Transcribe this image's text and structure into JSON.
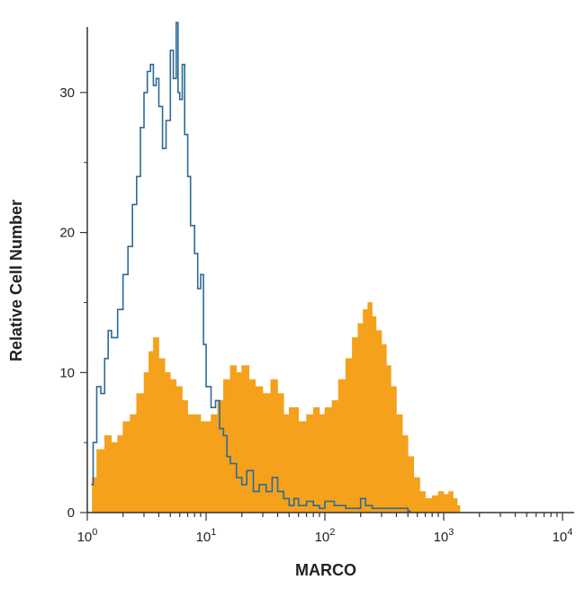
{
  "colors": {
    "positive_fill": "#F5A11C",
    "control_line": "#2C6A96",
    "axis": "#333333"
  },
  "chart_data": {
    "type": "area",
    "xscale": "log",
    "xlim": [
      1,
      10000
    ],
    "ylim": [
      0,
      35
    ],
    "xlabel": "MARCO",
    "ylabel": "Relative Cell Number",
    "xticks": [
      {
        "value": 1,
        "base": "10",
        "exp": "0"
      },
      {
        "value": 10,
        "base": "10",
        "exp": "1"
      },
      {
        "value": 100,
        "base": "10",
        "exp": "2"
      },
      {
        "value": 1000,
        "base": "10",
        "exp": "3"
      },
      {
        "value": 10000,
        "base": "10",
        "exp": "4"
      }
    ],
    "yticks": [
      {
        "value": 0,
        "label": "0"
      },
      {
        "value": 10,
        "label": "10"
      },
      {
        "value": 20,
        "label": "20"
      },
      {
        "value": 30,
        "label": "30"
      }
    ],
    "series": [
      {
        "style": "filled",
        "color": "#F5A11C",
        "x": [
          1.1,
          1.2,
          1.4,
          1.6,
          1.8,
          2.0,
          2.3,
          2.6,
          3.0,
          3.3,
          3.6,
          4.0,
          4.5,
          5.0,
          5.6,
          6.3,
          7.0,
          8.0,
          9.0,
          10,
          11,
          12.5,
          14,
          16,
          18,
          20,
          23,
          26,
          30,
          35,
          40,
          45,
          50,
          60,
          70,
          80,
          90,
          100,
          115,
          130,
          150,
          170,
          190,
          210,
          230,
          250,
          270,
          300,
          330,
          360,
          400,
          450,
          500,
          560,
          630,
          700,
          800,
          900,
          1000,
          1100,
          1200,
          1300
        ],
        "y": [
          2.5,
          4.5,
          5.5,
          5.0,
          5.5,
          6.5,
          7.0,
          8.5,
          10.0,
          11.5,
          12.5,
          11.0,
          10.0,
          9.5,
          9.0,
          8.0,
          7.0,
          7.0,
          6.5,
          6.5,
          7.0,
          8.0,
          9.5,
          10.5,
          10.0,
          10.5,
          9.5,
          9.0,
          8.5,
          9.5,
          8.5,
          7.0,
          7.5,
          6.5,
          7.0,
          7.5,
          7.0,
          7.5,
          8.0,
          9.5,
          11.0,
          12.5,
          13.5,
          14.5,
          15.0,
          14.0,
          13.0,
          12.0,
          10.5,
          9.0,
          7.0,
          5.5,
          4.0,
          2.5,
          1.5,
          1.0,
          1.2,
          1.5,
          1.3,
          1.5,
          1.0,
          0.5
        ]
      },
      {
        "style": "line",
        "color": "#2C6A96",
        "x": [
          1.08,
          1.12,
          1.2,
          1.3,
          1.4,
          1.5,
          1.6,
          1.8,
          2.0,
          2.2,
          2.4,
          2.6,
          2.8,
          3.0,
          3.2,
          3.4,
          3.6,
          3.8,
          4.0,
          4.3,
          4.6,
          5.0,
          5.3,
          5.6,
          5.8,
          6.0,
          6.3,
          6.6,
          7.0,
          7.4,
          8.0,
          8.5,
          9.0,
          9.5,
          10,
          11,
          12,
          13,
          14,
          15,
          16,
          18,
          20,
          22,
          25,
          28,
          32,
          36,
          40,
          45,
          50,
          55,
          60,
          70,
          80,
          90,
          100,
          120,
          150,
          180,
          200,
          220,
          250,
          300,
          400,
          500
        ],
        "y": [
          2.0,
          5.0,
          9.0,
          8.5,
          11.0,
          13.0,
          12.5,
          14.5,
          17.0,
          19.0,
          22.0,
          24.0,
          27.5,
          30.0,
          31.5,
          32.0,
          30.5,
          31.0,
          29.0,
          26.0,
          28.0,
          33.0,
          31.0,
          35.0,
          30.0,
          29.5,
          32.0,
          27.0,
          24.0,
          20.5,
          18.5,
          16.0,
          17.0,
          12.0,
          9.0,
          7.5,
          8.0,
          6.0,
          5.5,
          4.0,
          3.5,
          2.5,
          2.0,
          3.0,
          1.5,
          2.0,
          1.5,
          2.5,
          1.5,
          1.0,
          0.5,
          1.0,
          0.5,
          0.8,
          0.5,
          0.3,
          0.8,
          0.5,
          0.3,
          0.3,
          1.0,
          0.5,
          0.3,
          0.3,
          0.3,
          0.1
        ]
      }
    ]
  }
}
